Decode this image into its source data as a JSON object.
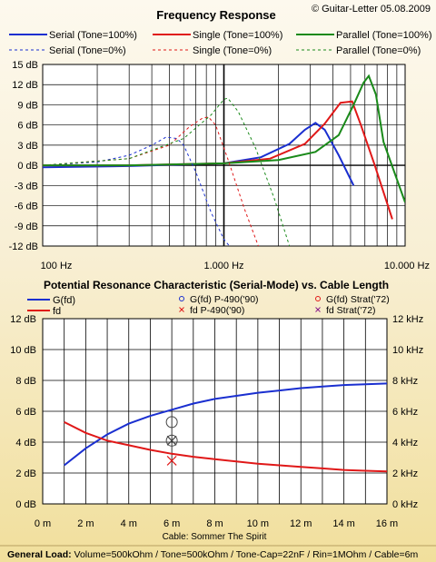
{
  "copyright": "© Guitar-Letter 05.08.2009",
  "footer": {
    "label": "General Load:",
    "text": " Volume=500kOhm / Tone=500kOhm / Tone-Cap=22nF / Rin=1MOhm / Cable=6m"
  },
  "colors": {
    "blue": "#1a2fd0",
    "red": "#e01818",
    "green": "#1a8a1a",
    "purple": "#8a1a8a",
    "dark": "#444444"
  },
  "chart_data": [
    {
      "type": "line",
      "title": "Frequency Response",
      "xscale": "log",
      "xlim": [
        100,
        10000
      ],
      "ylim": [
        -12,
        15
      ],
      "ylabels": [
        "15 dB",
        "12 dB",
        "9 dB",
        "6 dB",
        "3 dB",
        "0 dB",
        "-3 dB",
        "-6 dB",
        "-9 dB",
        "-12 dB"
      ],
      "xlabels": [
        "100 Hz",
        "1.000 Hz",
        "10.000 Hz"
      ],
      "legend_position": "top",
      "series": [
        {
          "name": "Serial (Tone=100%)",
          "color": "blue",
          "dash": "solid",
          "x": [
            100,
            300,
            1000,
            1600,
            2300,
            2800,
            3200,
            3600,
            4300,
            5200
          ],
          "y": [
            -0.3,
            -0.1,
            0.3,
            1.2,
            3.2,
            5.3,
            6.3,
            5.3,
            1.5,
            -3.0
          ]
        },
        {
          "name": "Single (Tone=100%)",
          "color": "red",
          "dash": "solid",
          "x": [
            100,
            300,
            1000,
            1800,
            2800,
            3600,
            4400,
            5100,
            5700,
            6800,
            8500
          ],
          "y": [
            0,
            0,
            0.3,
            1.0,
            3.2,
            6.2,
            9.3,
            9.5,
            6.0,
            0,
            -8.0
          ]
        },
        {
          "name": "Parallel (Tone=100%)",
          "color": "green",
          "dash": "solid",
          "x": [
            100,
            300,
            1000,
            2000,
            3200,
            4300,
            5200,
            5900,
            6300,
            6900,
            7600,
            10000
          ],
          "y": [
            0,
            0,
            0.3,
            0.8,
            2.0,
            4.5,
            9.0,
            12.3,
            13.3,
            10.5,
            3.5,
            -5.5
          ]
        },
        {
          "name": "Serial (Tone=0%)",
          "color": "blue",
          "dash": "dashed",
          "x": [
            100,
            200,
            300,
            400,
            480,
            550,
            600,
            700,
            850,
            1000,
            1150
          ],
          "y": [
            0,
            0.5,
            1.5,
            3.0,
            4.2,
            4.0,
            3.0,
            -1.0,
            -7.0,
            -11.0,
            -13.0
          ]
        },
        {
          "name": "Single (Tone=0%)",
          "color": "red",
          "dash": "dashed",
          "x": [
            100,
            300,
            500,
            650,
            760,
            820,
            900,
            1050,
            1300,
            1600
          ],
          "y": [
            0,
            1.0,
            3.0,
            5.8,
            7.0,
            7.2,
            6.0,
            1.0,
            -6.5,
            -13.0
          ]
        },
        {
          "name": "Parallel (Tone=0%)",
          "color": "green",
          "dash": "dashed",
          "x": [
            100,
            300,
            600,
            850,
            1000,
            1050,
            1200,
            1500,
            1900,
            2300
          ],
          "y": [
            0,
            1.0,
            4.0,
            7.5,
            9.8,
            10.0,
            8.0,
            2.5,
            -5.0,
            -12.0
          ]
        }
      ]
    },
    {
      "type": "line",
      "title": "Potential Resonance Characteristic (Serial-Mode) vs. Cable Length",
      "xlabel": "Cable: Sommer The Spirit",
      "xlim": [
        0,
        16
      ],
      "ylim_left": [
        0,
        12
      ],
      "ylim_right": [
        0,
        12
      ],
      "xlabels": [
        "0 m",
        "2 m",
        "4 m",
        "6 m",
        "8 m",
        "10 m",
        "12 m",
        "14 m",
        "16 m"
      ],
      "ylabels_left": [
        "12 dB",
        "10 dB",
        "8 dB",
        "6 dB",
        "4 dB",
        "2 dB",
        "0 dB"
      ],
      "ylabels_right": [
        "12 kHz",
        "10 kHz",
        "8 kHz",
        "6 kHz",
        "4 kHz",
        "2 kHz",
        "0 kHz"
      ],
      "legend_position": "top",
      "series": [
        {
          "name": "G(fd)",
          "color": "blue",
          "axis": "left",
          "x": [
            1,
            2,
            3,
            4,
            5,
            6,
            7,
            8,
            9,
            10,
            11,
            12,
            13,
            14,
            15,
            16
          ],
          "y": [
            2.5,
            3.6,
            4.5,
            5.2,
            5.7,
            6.1,
            6.5,
            6.8,
            7.0,
            7.2,
            7.35,
            7.5,
            7.6,
            7.7,
            7.75,
            7.8
          ]
        },
        {
          "name": "fd",
          "color": "red",
          "axis": "right",
          "x": [
            1,
            2,
            3,
            4,
            5,
            6,
            7,
            8,
            9,
            10,
            11,
            12,
            13,
            14,
            15,
            16
          ],
          "y": [
            5.3,
            4.6,
            4.1,
            3.8,
            3.5,
            3.25,
            3.05,
            2.9,
            2.75,
            2.6,
            2.5,
            2.4,
            2.3,
            2.2,
            2.15,
            2.1
          ]
        }
      ],
      "markers": [
        {
          "name": "G(fd) P-490('90)",
          "color": "blue",
          "symbol": "circle",
          "x": 6,
          "y": 5.3,
          "plot_color": "dark"
        },
        {
          "name": "G(fd) Strat('72)",
          "color": "red",
          "symbol": "circle",
          "x": 6,
          "y": 4.1,
          "plot_color": "dark"
        },
        {
          "name": "fd P-490('90)",
          "color": "red",
          "symbol": "x",
          "x": 6,
          "y": 2.8,
          "plot_color": "red"
        },
        {
          "name": "fd Strat('72)",
          "color": "purple",
          "symbol": "x",
          "x": 6,
          "y": 4.1,
          "plot_color": "dark"
        }
      ]
    }
  ]
}
